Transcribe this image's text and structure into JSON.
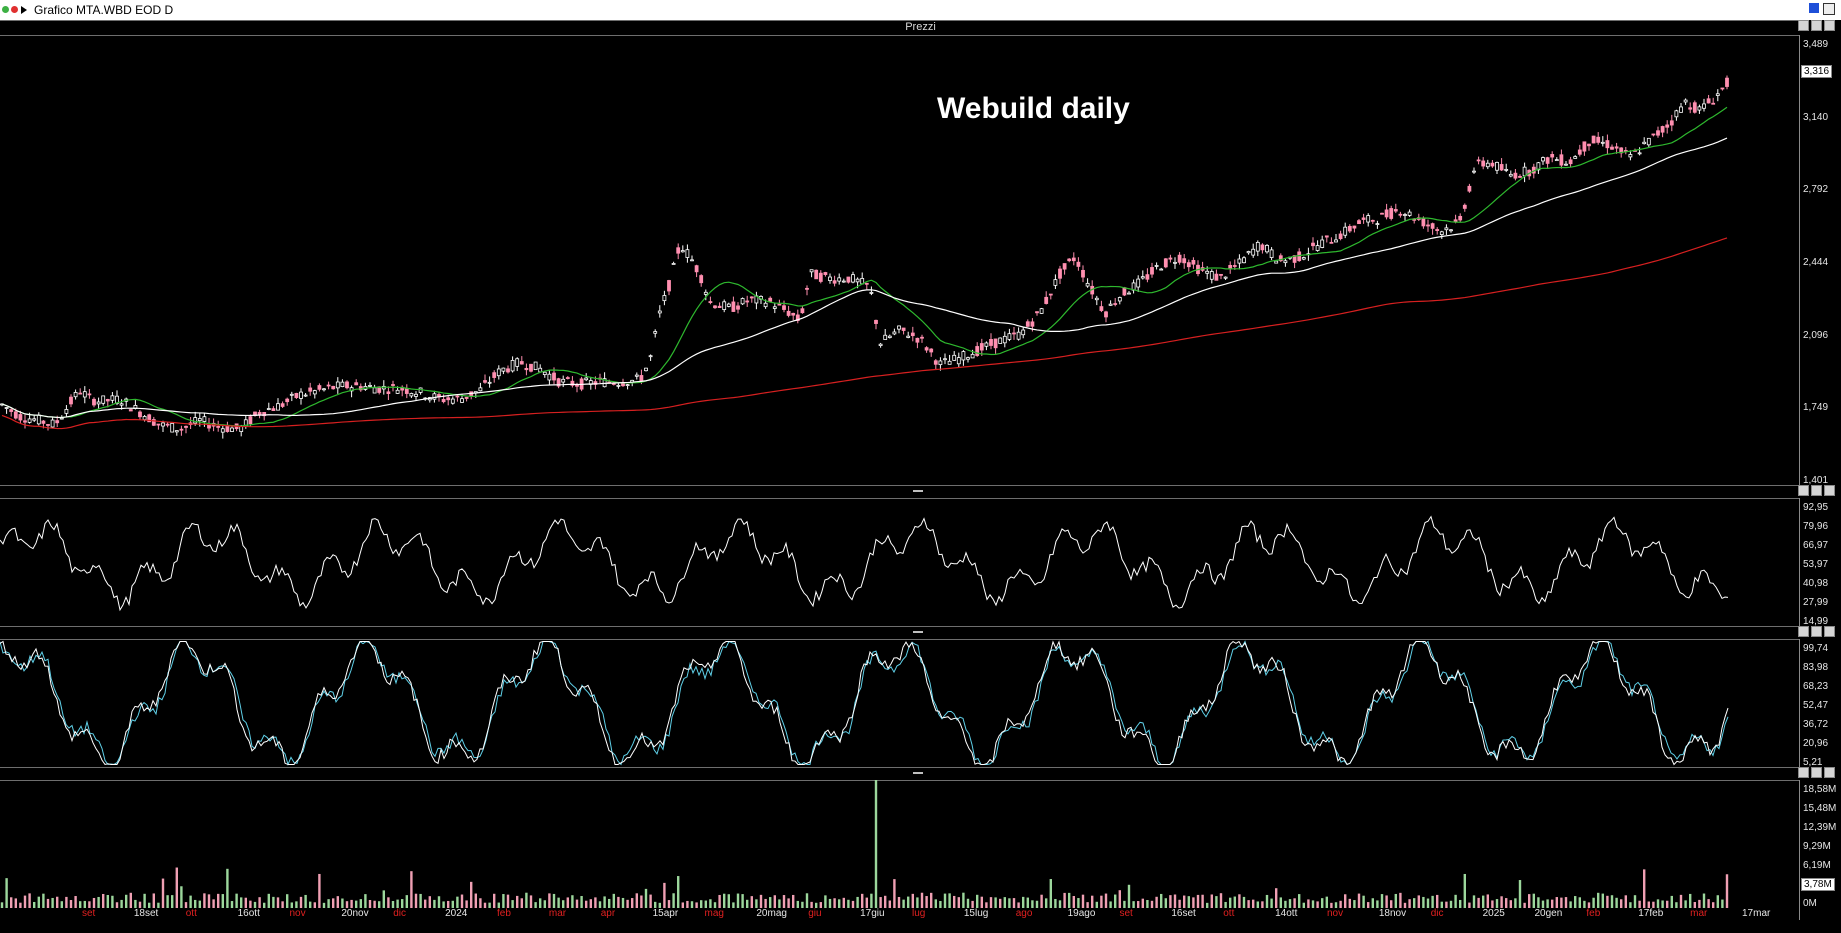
{
  "window": {
    "title": "Grafico MTA.WBD EOD D"
  },
  "price_panel": {
    "caption": "Prezzi",
    "watermark": "Webuild daily",
    "ticks": [
      "3,489",
      "3,140",
      "2,792",
      "2,444",
      "2,096",
      "1,749",
      "1,401"
    ],
    "last_value": "3,316"
  },
  "rsi_panel": {
    "ticks": [
      "92,95",
      "79,96",
      "66,97",
      "53,97",
      "40,98",
      "27,99",
      "14,99"
    ]
  },
  "stoch_panel": {
    "ticks": [
      "99,74",
      "83,98",
      "68,23",
      "52,47",
      "36,72",
      "20,96",
      "5,21"
    ]
  },
  "volume_panel": {
    "ticks": [
      "18,58M",
      "15,48M",
      "12,39M",
      "9,29M",
      "6,19M",
      "3,09M",
      "0M"
    ],
    "last_value": "3,78M"
  },
  "date_axis": [
    {
      "label": "set",
      "red": true
    },
    {
      "label": "18set",
      "red": false
    },
    {
      "label": "ott",
      "red": true
    },
    {
      "label": "16ott",
      "red": false
    },
    {
      "label": "nov",
      "red": true
    },
    {
      "label": "20nov",
      "red": false
    },
    {
      "label": "dic",
      "red": true
    },
    {
      "label": "2024",
      "red": false
    },
    {
      "label": "feb",
      "red": true
    },
    {
      "label": "mar",
      "red": true
    },
    {
      "label": "apr",
      "red": true
    },
    {
      "label": "15apr",
      "red": false
    },
    {
      "label": "mag",
      "red": true
    },
    {
      "label": "20mag",
      "red": false
    },
    {
      "label": "giu",
      "red": true
    },
    {
      "label": "17giu",
      "red": false
    },
    {
      "label": "lug",
      "red": true
    },
    {
      "label": "15lug",
      "red": false
    },
    {
      "label": "ago",
      "red": true
    },
    {
      "label": "19ago",
      "red": false
    },
    {
      "label": "set",
      "red": true
    },
    {
      "label": "16set",
      "red": false
    },
    {
      "label": "ott",
      "red": true
    },
    {
      "label": "14ott",
      "red": false
    },
    {
      "label": "nov",
      "red": true
    },
    {
      "label": "18nov",
      "red": false
    },
    {
      "label": "dic",
      "red": true
    },
    {
      "label": "2025",
      "red": false
    },
    {
      "label": "20gen",
      "red": false
    },
    {
      "label": "feb",
      "red": true
    },
    {
      "label": "17feb",
      "red": false
    },
    {
      "label": "mar",
      "red": true
    },
    {
      "label": "17mar",
      "red": false
    }
  ],
  "colors": {
    "background": "#000000",
    "bull_candle": "#ffffff",
    "bear_candle": "#ff8fb0",
    "ma_short": "#2eb82e",
    "ma_mid": "#ffffff",
    "ma_long": "#d62020",
    "rsi": "#ffffff",
    "stoch_k": "#ffffff",
    "stoch_d": "#5fd0e8",
    "vol_up": "#9cd79c",
    "vol_down": "#f0a0b4"
  },
  "chart_data": [
    {
      "type": "line",
      "name": "price",
      "title": "Webuild daily",
      "ylim": [
        1.401,
        3.489
      ],
      "series_points": [
        [
          0,
          1.78
        ],
        [
          20,
          1.72
        ],
        [
          40,
          1.7
        ],
        [
          55,
          1.68
        ],
        [
          70,
          1.78
        ],
        [
          80,
          1.84
        ],
        [
          90,
          1.8
        ],
        [
          100,
          1.79
        ],
        [
          120,
          1.8
        ],
        [
          140,
          1.74
        ],
        [
          160,
          1.68
        ],
        [
          180,
          1.66
        ],
        [
          200,
          1.7
        ],
        [
          220,
          1.67
        ],
        [
          240,
          1.66
        ],
        [
          260,
          1.74
        ],
        [
          280,
          1.77
        ],
        [
          300,
          1.82
        ],
        [
          320,
          1.84
        ],
        [
          340,
          1.86
        ],
        [
          360,
          1.86
        ],
        [
          380,
          1.85
        ],
        [
          400,
          1.85
        ],
        [
          420,
          1.83
        ],
        [
          440,
          1.8
        ],
        [
          460,
          1.8
        ],
        [
          480,
          1.84
        ],
        [
          500,
          1.93
        ],
        [
          520,
          1.97
        ],
        [
          540,
          1.94
        ],
        [
          560,
          1.88
        ],
        [
          580,
          1.87
        ],
        [
          600,
          1.88
        ],
        [
          620,
          1.88
        ],
        [
          640,
          1.89
        ],
        [
          650,
          1.98
        ],
        [
          660,
          2.2
        ],
        [
          670,
          2.34
        ],
        [
          680,
          2.52
        ],
        [
          690,
          2.46
        ],
        [
          700,
          2.38
        ],
        [
          710,
          2.25
        ],
        [
          730,
          2.22
        ],
        [
          750,
          2.26
        ],
        [
          770,
          2.25
        ],
        [
          790,
          2.2
        ],
        [
          800,
          2.16
        ],
        [
          810,
          2.38
        ],
        [
          830,
          2.36
        ],
        [
          850,
          2.36
        ],
        [
          870,
          2.32
        ],
        [
          880,
          2.06
        ],
        [
          900,
          2.12
        ],
        [
          920,
          2.08
        ],
        [
          940,
          1.96
        ],
        [
          960,
          1.99
        ],
        [
          980,
          2.03
        ],
        [
          1000,
          2.07
        ],
        [
          1020,
          2.1
        ],
        [
          1040,
          2.2
        ],
        [
          1060,
          2.38
        ],
        [
          1075,
          2.46
        ],
        [
          1090,
          2.32
        ],
        [
          1105,
          2.2
        ],
        [
          1120,
          2.28
        ],
        [
          1140,
          2.34
        ],
        [
          1160,
          2.42
        ],
        [
          1180,
          2.46
        ],
        [
          1200,
          2.4
        ],
        [
          1220,
          2.36
        ],
        [
          1240,
          2.43
        ],
        [
          1260,
          2.52
        ],
        [
          1280,
          2.44
        ],
        [
          1300,
          2.46
        ],
        [
          1320,
          2.52
        ],
        [
          1340,
          2.56
        ],
        [
          1360,
          2.62
        ],
        [
          1380,
          2.64
        ],
        [
          1400,
          2.68
        ],
        [
          1420,
          2.63
        ],
        [
          1440,
          2.58
        ],
        [
          1460,
          2.62
        ],
        [
          1475,
          2.88
        ],
        [
          1490,
          2.9
        ],
        [
          1510,
          2.84
        ],
        [
          1530,
          2.86
        ],
        [
          1550,
          2.92
        ],
        [
          1570,
          2.9
        ],
        [
          1590,
          3.0
        ],
        [
          1610,
          2.98
        ],
        [
          1630,
          2.92
        ],
        [
          1650,
          3.0
        ],
        [
          1670,
          3.08
        ],
        [
          1685,
          3.18
        ],
        [
          1700,
          3.14
        ],
        [
          1715,
          3.2
        ],
        [
          1730,
          3.28
        ]
      ]
    },
    {
      "type": "line",
      "name": "rsi",
      "ylim": [
        14.99,
        92.95
      ]
    },
    {
      "type": "line",
      "name": "stochastic",
      "ylim": [
        5.21,
        99.74
      ]
    },
    {
      "type": "bar",
      "name": "volume",
      "ylim": [
        0,
        18.58
      ]
    }
  ]
}
